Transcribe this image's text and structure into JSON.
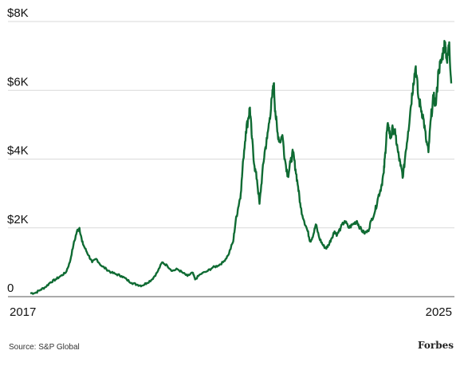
{
  "chart_data": {
    "type": "line",
    "title": "",
    "xlabel": "",
    "ylabel": "",
    "x_tick_labels": [
      "2017",
      "2025"
    ],
    "y_ticks": [
      0,
      2000,
      4000,
      6000,
      8000
    ],
    "y_tick_labels": [
      "0",
      "$2K",
      "$4K",
      "$6K",
      "$8K"
    ],
    "xlim": [
      2017.0,
      2025.3
    ],
    "ylim": [
      0,
      8000
    ],
    "grid": "horizontal",
    "series": [
      {
        "color": "#0f6b33",
        "points": [
          [
            2017.0,
            100
          ],
          [
            2017.1,
            110
          ],
          [
            2017.2,
            200
          ],
          [
            2017.3,
            280
          ],
          [
            2017.4,
            420
          ],
          [
            2017.5,
            500
          ],
          [
            2017.6,
            600
          ],
          [
            2017.7,
            700
          ],
          [
            2017.78,
            1000
          ],
          [
            2017.85,
            1500
          ],
          [
            2017.92,
            1900
          ],
          [
            2017.97,
            2000
          ],
          [
            2018.02,
            1600
          ],
          [
            2018.08,
            1400
          ],
          [
            2018.15,
            1200
          ],
          [
            2018.22,
            1000
          ],
          [
            2018.3,
            1100
          ],
          [
            2018.4,
            900
          ],
          [
            2018.5,
            800
          ],
          [
            2018.6,
            700
          ],
          [
            2018.7,
            650
          ],
          [
            2018.8,
            600
          ],
          [
            2018.9,
            500
          ],
          [
            2019.0,
            400
          ],
          [
            2019.1,
            350
          ],
          [
            2019.2,
            320
          ],
          [
            2019.3,
            400
          ],
          [
            2019.4,
            500
          ],
          [
            2019.5,
            700
          ],
          [
            2019.6,
            1000
          ],
          [
            2019.7,
            900
          ],
          [
            2019.8,
            750
          ],
          [
            2019.9,
            800
          ],
          [
            2020.0,
            700
          ],
          [
            2020.1,
            600
          ],
          [
            2020.2,
            700
          ],
          [
            2020.25,
            500
          ],
          [
            2020.35,
            650
          ],
          [
            2020.5,
            750
          ],
          [
            2020.6,
            850
          ],
          [
            2020.7,
            900
          ],
          [
            2020.8,
            1000
          ],
          [
            2020.9,
            1200
          ],
          [
            2021.0,
            1600
          ],
          [
            2021.05,
            2200
          ],
          [
            2021.1,
            2600
          ],
          [
            2021.15,
            3000
          ],
          [
            2021.2,
            4000
          ],
          [
            2021.25,
            4800
          ],
          [
            2021.3,
            5200
          ],
          [
            2021.33,
            5500
          ],
          [
            2021.37,
            4600
          ],
          [
            2021.42,
            3800
          ],
          [
            2021.47,
            3400
          ],
          [
            2021.52,
            2700
          ],
          [
            2021.57,
            3500
          ],
          [
            2021.62,
            4200
          ],
          [
            2021.67,
            4600
          ],
          [
            2021.72,
            5200
          ],
          [
            2021.77,
            5800
          ],
          [
            2021.8,
            6200
          ],
          [
            2021.83,
            5400
          ],
          [
            2021.87,
            4800
          ],
          [
            2021.92,
            4500
          ],
          [
            2021.97,
            4700
          ],
          [
            2022.02,
            4000
          ],
          [
            2022.08,
            3500
          ],
          [
            2022.13,
            3900
          ],
          [
            2022.18,
            4200
          ],
          [
            2022.23,
            3700
          ],
          [
            2022.28,
            3200
          ],
          [
            2022.33,
            2600
          ],
          [
            2022.4,
            2200
          ],
          [
            2022.47,
            1900
          ],
          [
            2022.52,
            1600
          ],
          [
            2022.58,
            1800
          ],
          [
            2022.63,
            2100
          ],
          [
            2022.7,
            1700
          ],
          [
            2022.77,
            1500
          ],
          [
            2022.83,
            1400
          ],
          [
            2022.88,
            1500
          ],
          [
            2022.94,
            1700
          ],
          [
            2023.0,
            1900
          ],
          [
            2023.05,
            1800
          ],
          [
            2023.12,
            2000
          ],
          [
            2023.2,
            2200
          ],
          [
            2023.28,
            2000
          ],
          [
            2023.36,
            2100
          ],
          [
            2023.44,
            2200
          ],
          [
            2023.5,
            2000
          ],
          [
            2023.58,
            1850
          ],
          [
            2023.66,
            1900
          ],
          [
            2023.72,
            2200
          ],
          [
            2023.8,
            2500
          ],
          [
            2023.86,
            2900
          ],
          [
            2023.92,
            3200
          ],
          [
            2023.97,
            3600
          ],
          [
            2024.0,
            4200
          ],
          [
            2024.03,
            4800
          ],
          [
            2024.06,
            5000
          ],
          [
            2024.1,
            4600
          ],
          [
            2024.15,
            4900
          ],
          [
            2024.2,
            4700
          ],
          [
            2024.25,
            4200
          ],
          [
            2024.3,
            3800
          ],
          [
            2024.35,
            3500
          ],
          [
            2024.4,
            4200
          ],
          [
            2024.45,
            4800
          ],
          [
            2024.5,
            5500
          ],
          [
            2024.55,
            6200
          ],
          [
            2024.6,
            6700
          ],
          [
            2024.65,
            5800
          ],
          [
            2024.7,
            5500
          ],
          [
            2024.75,
            5200
          ],
          [
            2024.8,
            4600
          ],
          [
            2024.85,
            4200
          ],
          [
            2024.9,
            5200
          ],
          [
            2024.95,
            5800
          ],
          [
            2025.0,
            5600
          ],
          [
            2025.05,
            6600
          ],
          [
            2025.1,
            6800
          ],
          [
            2025.15,
            7200
          ],
          [
            2025.18,
            7400
          ],
          [
            2025.22,
            6800
          ],
          [
            2025.26,
            7400
          ],
          [
            2025.3,
            6200
          ]
        ]
      }
    ]
  },
  "footer": {
    "source": "Source: S&P Global",
    "brand": "Forbes"
  }
}
